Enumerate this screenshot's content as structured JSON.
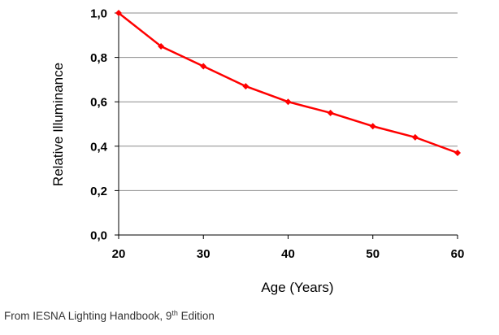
{
  "chart_data": {
    "type": "line",
    "xlabel": "Age (Years)",
    "ylabel": "Relative Illuminance",
    "xlim": [
      20,
      60
    ],
    "ylim": [
      0,
      1
    ],
    "x_ticks": [
      {
        "value": 20,
        "label": "20"
      },
      {
        "value": 30,
        "label": "30"
      },
      {
        "value": 40,
        "label": "40"
      },
      {
        "value": 50,
        "label": "50"
      },
      {
        "value": 60,
        "label": "60"
      }
    ],
    "y_ticks": [
      {
        "value": 0,
        "label": "0,0"
      },
      {
        "value": 0.2,
        "label": "0,2"
      },
      {
        "value": 0.4,
        "label": "0,4"
      },
      {
        "value": 0.6,
        "label": "0,6"
      },
      {
        "value": 0.8,
        "label": "0,8"
      },
      {
        "value": 1.0,
        "label": "1,0"
      }
    ],
    "grid": "horizontal",
    "legend": "none",
    "series": [
      {
        "color": "#ff0000",
        "marker": "diamond",
        "x": [
          20,
          25,
          30,
          35,
          40,
          45,
          50,
          55,
          60
        ],
        "y": [
          1.0,
          0.85,
          0.76,
          0.67,
          0.6,
          0.55,
          0.49,
          0.44,
          0.37
        ]
      }
    ]
  },
  "caption": {
    "text": "From IESNA Lighting Handbook, 9",
    "superscript": "th",
    "suffix": " Edition"
  }
}
